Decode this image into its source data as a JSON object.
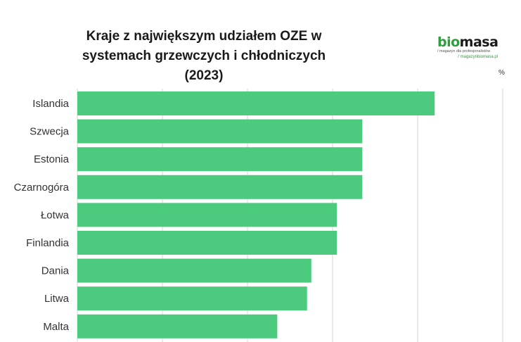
{
  "title_lines": [
    "Kraje z największym udziałem OZE w",
    "systemach grzewczych i chłodniczych (2023)"
  ],
  "logo": {
    "bio": "bio",
    "masa": "masa",
    "tagline": "/ magazyn dla profesjonalistów",
    "url": "/ magazynbiomasa.pl"
  },
  "unit_label": "%",
  "colors": {
    "bar": "#4ccb7f",
    "grid": "#d6d6d6"
  },
  "chart_data": {
    "type": "bar",
    "orientation": "horizontal",
    "categories": [
      "Islandia",
      "Szwecja",
      "Estonia",
      "Czarnogóra",
      "Łotwa",
      "Finlandia",
      "Dania",
      "Litwa",
      "Malta"
    ],
    "values": [
      84,
      67,
      67,
      67,
      61,
      61,
      55,
      54,
      47
    ],
    "xlim": [
      0,
      100
    ],
    "grid": true,
    "tick_labels_visible": false
  }
}
